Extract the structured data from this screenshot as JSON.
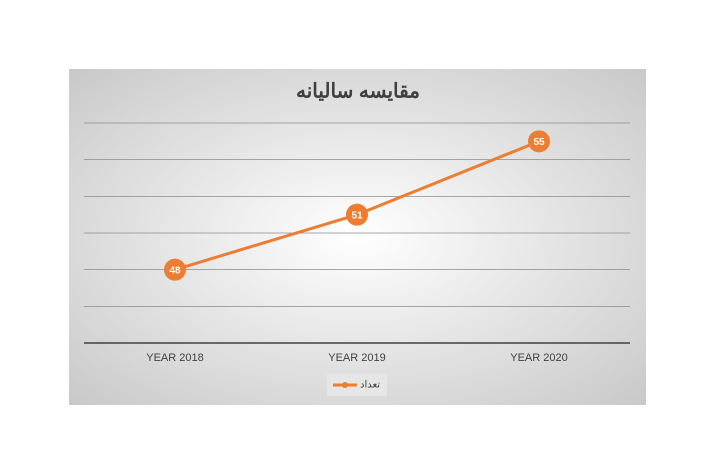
{
  "chart_data": {
    "type": "line",
    "title": "مقایسه سالیانه",
    "categories": [
      "YEAR 2018",
      "YEAR 2019",
      "YEAR 2020"
    ],
    "series": [
      {
        "name": "تعداد",
        "color": "#ed7d31",
        "values": [
          48,
          51,
          55
        ]
      }
    ],
    "ylim": [
      44,
      56
    ],
    "yticks": [
      44,
      46,
      48,
      50,
      52,
      54,
      56
    ],
    "grid": true,
    "legend": "bottom"
  }
}
